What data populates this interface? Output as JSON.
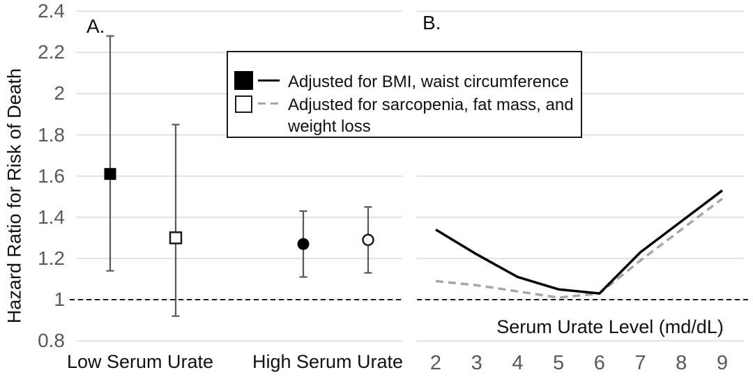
{
  "figure": {
    "panel_a_label": "A.",
    "panel_b_label": "B.",
    "y_axis_title": "Hazard Ratio for Risk of Death"
  },
  "colors": {
    "background": "#ffffff",
    "gridline": "#d9d9d9",
    "tick_label": "#595959",
    "error_bar": "#595959",
    "series_primary": "#000000",
    "series_secondary": "#a6a6a6",
    "reference_line": "#1a1a1a"
  },
  "legend": {
    "items": [
      {
        "marker": "filled-square",
        "line_style": "solid",
        "label": "Adjusted for BMI, waist circumference",
        "label_lines": [
          "Adjusted for BMI, waist circumference"
        ]
      },
      {
        "marker": "open-square",
        "line_style": "dashed",
        "label": "Adjusted for sarcopenia, fat mass, and weight loss",
        "label_lines": [
          "Adjusted for sarcopenia, fat mass, and",
          "weight loss"
        ]
      }
    ]
  },
  "y_axis": {
    "tick_labels": [
      "2.4",
      "2.2",
      "2",
      "1.8",
      "1.6",
      "1.4",
      "1.2",
      "1",
      "0.8"
    ],
    "tick_values": [
      2.4,
      2.2,
      2.0,
      1.8,
      1.6,
      1.4,
      1.2,
      1.0,
      0.8
    ]
  },
  "chart_data": [
    {
      "panel": "A",
      "type": "scatter",
      "ylabel": "Hazard Ratio for Risk of Death",
      "ylim": [
        0.8,
        2.4
      ],
      "yticks": [
        0.8,
        1.0,
        1.2,
        1.4,
        1.6,
        1.8,
        2.0,
        2.2,
        2.4
      ],
      "grid": true,
      "reference_line_y": 1.0,
      "categories": [
        "Low Serum Urate",
        "High Serum Urate"
      ],
      "points": [
        {
          "category": "Low Serum Urate",
          "series": "Adjusted for BMI, waist circumference",
          "marker": "filled-square",
          "hr": 1.61,
          "ci_low": 1.14,
          "ci_high": 2.28
        },
        {
          "category": "Low Serum Urate",
          "series": "Adjusted for sarcopenia, fat mass, and weight loss",
          "marker": "open-square",
          "hr": 1.3,
          "ci_low": 0.92,
          "ci_high": 1.85
        },
        {
          "category": "High Serum Urate",
          "series": "Adjusted for BMI, waist circumference",
          "marker": "filled-circle",
          "hr": 1.27,
          "ci_low": 1.11,
          "ci_high": 1.43
        },
        {
          "category": "High Serum Urate",
          "series": "Adjusted for sarcopenia, fat mass, and weight loss",
          "marker": "open-circle",
          "hr": 1.29,
          "ci_low": 1.13,
          "ci_high": 1.45
        }
      ]
    },
    {
      "panel": "B",
      "type": "line",
      "xlabel": "Serum Urate Level (md/dL)",
      "x": [
        2,
        3,
        4,
        5,
        6,
        7,
        8,
        9
      ],
      "xtick_labels": [
        "2",
        "3",
        "4",
        "5",
        "6",
        "7",
        "8",
        "9"
      ],
      "ylim": [
        0.8,
        2.4
      ],
      "grid": true,
      "reference_line_y": 1.0,
      "series": [
        {
          "name": "Adjusted for BMI, waist circumference",
          "style": "solid",
          "color": "#000000",
          "values": [
            1.34,
            1.22,
            1.11,
            1.05,
            1.03,
            1.23,
            1.38,
            1.53
          ]
        },
        {
          "name": "Adjusted for sarcopenia, fat mass, and weight loss",
          "style": "dashed",
          "color": "#a6a6a6",
          "values": [
            1.09,
            1.07,
            1.04,
            1.01,
            1.03,
            1.19,
            1.34,
            1.49
          ]
        }
      ]
    }
  ]
}
